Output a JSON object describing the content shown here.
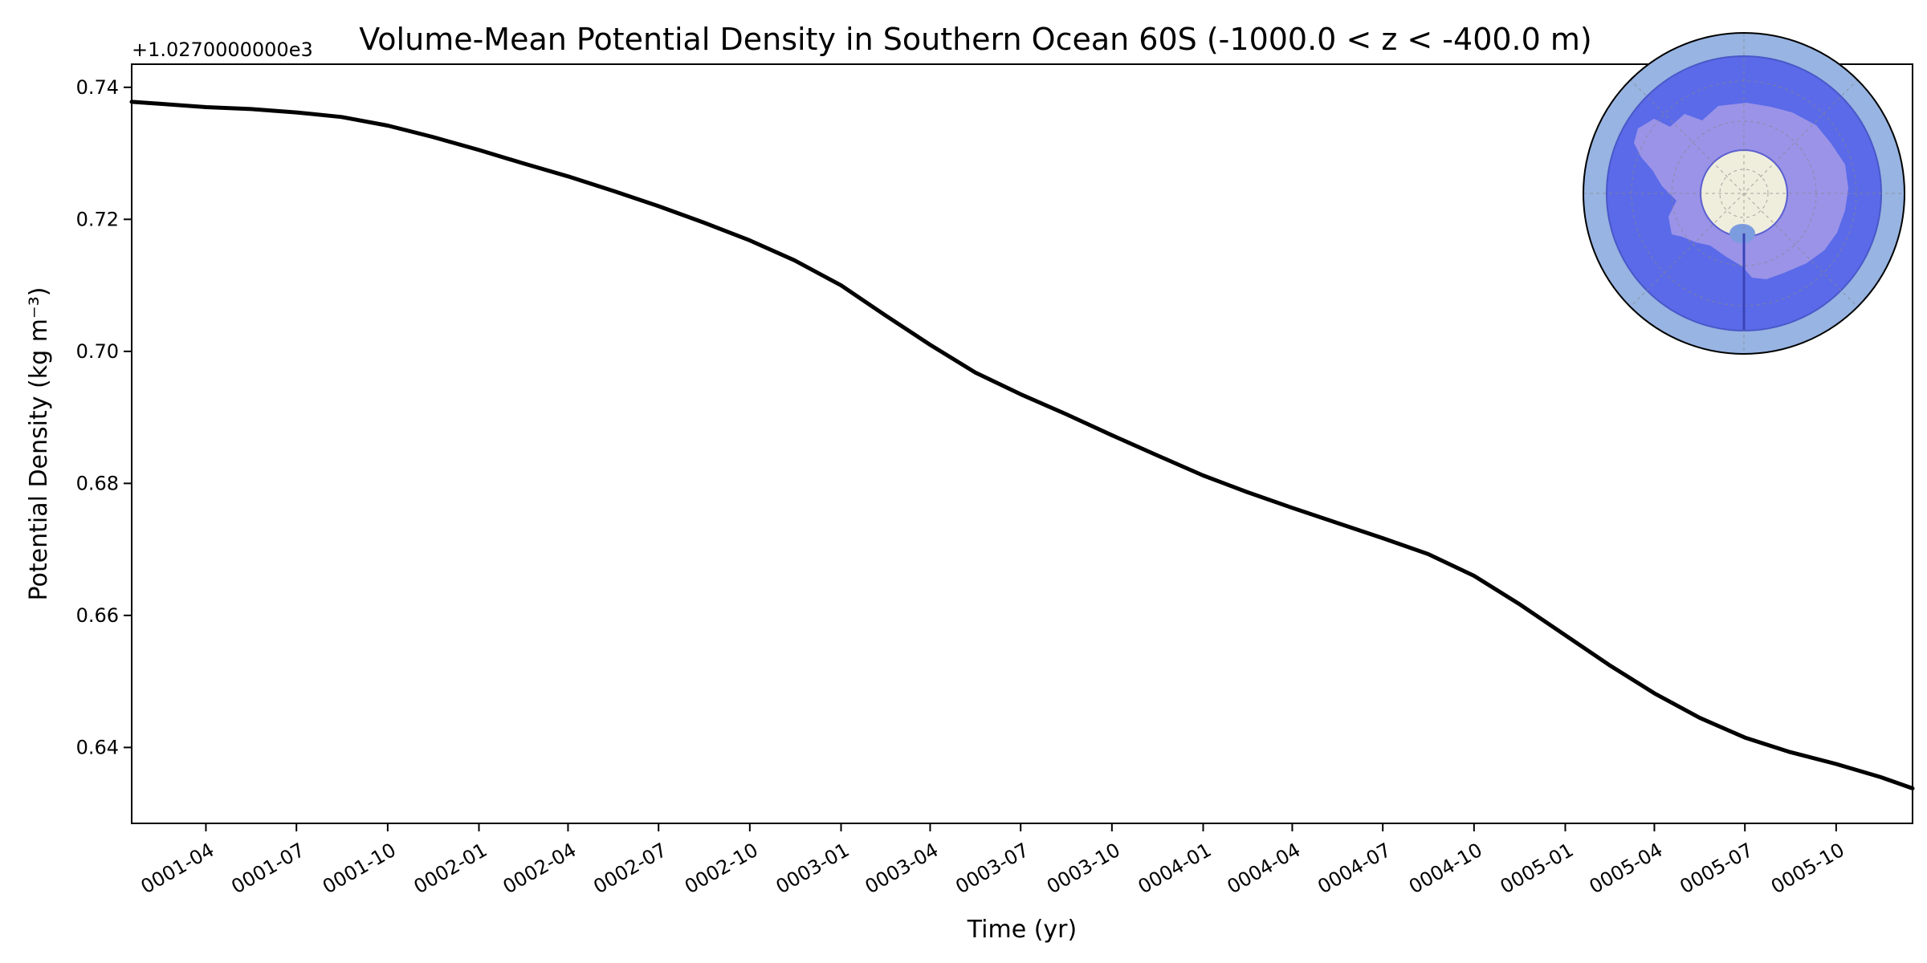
{
  "chart_data": {
    "type": "line",
    "title": "Volume-Mean Potential Density in Southern Ocean 60S (-1000.0 < z < -400.0 m)",
    "xlabel": "Time (yr)",
    "ylabel": "Potential Density (kg m⁻³)",
    "offset_text": "+1.0270000000e3",
    "y_offset": 1027.0,
    "xlim": [
      0.0,
      4.918
    ],
    "ylim": [
      0.6285,
      0.7435
    ],
    "grid": false,
    "y_ticks": [
      {
        "value": 0.64,
        "label": "0.64"
      },
      {
        "value": 0.66,
        "label": "0.66"
      },
      {
        "value": 0.68,
        "label": "0.68"
      },
      {
        "value": 0.7,
        "label": "0.70"
      },
      {
        "value": 0.72,
        "label": "0.72"
      },
      {
        "value": 0.74,
        "label": "0.74"
      }
    ],
    "x_ticks": [
      {
        "value": 0.205,
        "label": "0001-04"
      },
      {
        "value": 0.455,
        "label": "0001-07"
      },
      {
        "value": 0.707,
        "label": "0001-10"
      },
      {
        "value": 0.959,
        "label": "0002-01"
      },
      {
        "value": 1.205,
        "label": "0002-04"
      },
      {
        "value": 1.455,
        "label": "0002-07"
      },
      {
        "value": 1.707,
        "label": "0002-10"
      },
      {
        "value": 1.959,
        "label": "0003-01"
      },
      {
        "value": 2.205,
        "label": "0003-04"
      },
      {
        "value": 2.455,
        "label": "0003-07"
      },
      {
        "value": 2.707,
        "label": "0003-10"
      },
      {
        "value": 2.959,
        "label": "0004-01"
      },
      {
        "value": 3.205,
        "label": "0004-04"
      },
      {
        "value": 3.455,
        "label": "0004-07"
      },
      {
        "value": 3.707,
        "label": "0004-10"
      },
      {
        "value": 3.959,
        "label": "0005-01"
      },
      {
        "value": 4.205,
        "label": "0005-04"
      },
      {
        "value": 4.455,
        "label": "0005-07"
      },
      {
        "value": 4.707,
        "label": "0005-10"
      }
    ],
    "series": [
      {
        "name": "potential density",
        "color": "#000000",
        "x": [
          0.0,
          0.08,
          0.205,
          0.33,
          0.455,
          0.58,
          0.707,
          0.83,
          0.959,
          1.08,
          1.205,
          1.33,
          1.455,
          1.58,
          1.707,
          1.83,
          1.959,
          2.08,
          2.205,
          2.33,
          2.455,
          2.58,
          2.707,
          2.83,
          2.959,
          3.08,
          3.205,
          3.33,
          3.455,
          3.58,
          3.707,
          3.83,
          3.959,
          4.08,
          4.205,
          4.33,
          4.455,
          4.58,
          4.707,
          4.83,
          4.918
        ],
        "y": [
          0.7378,
          0.7375,
          0.737,
          0.7367,
          0.7362,
          0.7355,
          0.7342,
          0.7325,
          0.7305,
          0.7285,
          0.7265,
          0.7243,
          0.722,
          0.7195,
          0.7168,
          0.7138,
          0.71,
          0.7055,
          0.701,
          0.6968,
          0.6935,
          0.6905,
          0.6873,
          0.6843,
          0.6812,
          0.6787,
          0.6763,
          0.674,
          0.6717,
          0.6693,
          0.666,
          0.6618,
          0.657,
          0.6525,
          0.6482,
          0.6445,
          0.6415,
          0.6393,
          0.6375,
          0.6355,
          0.6338
        ]
      }
    ]
  },
  "inset_map": {
    "projection": "south polar stereographic",
    "ocean_color": "#97b4e2",
    "region_color": "#5a6ae8",
    "land_color": "#9a93e8",
    "pole_color": "#efeddc"
  }
}
